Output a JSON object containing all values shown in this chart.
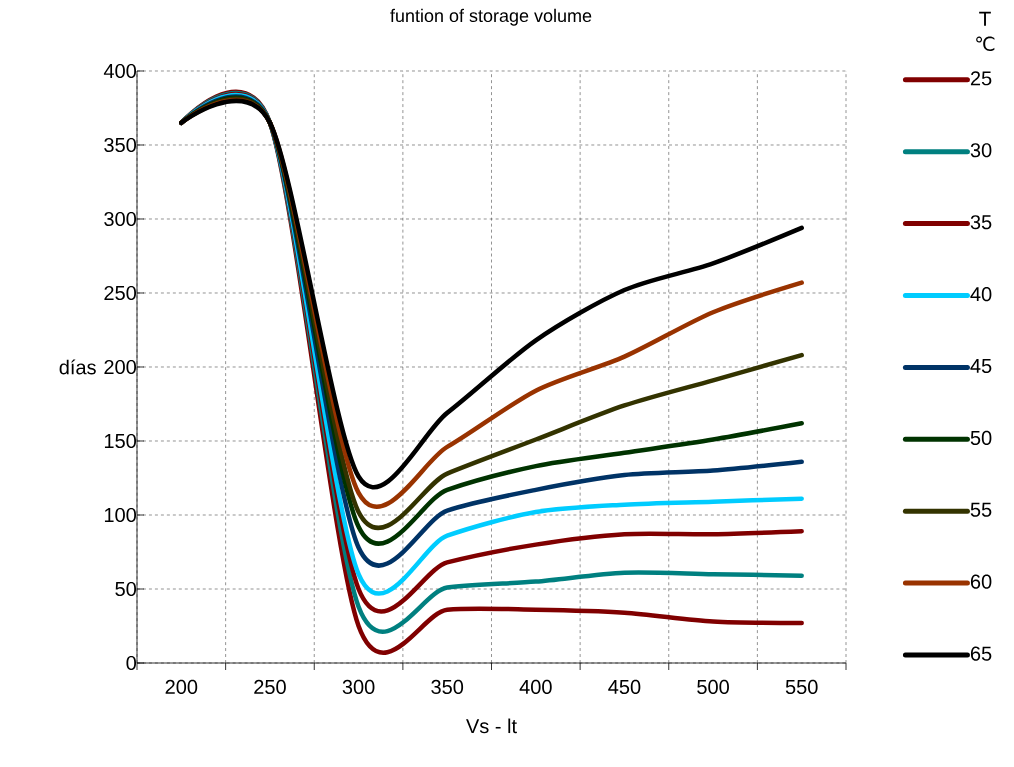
{
  "chart_data": {
    "type": "line",
    "title": "funtion of storage volume",
    "xlabel": "Vs - lt",
    "ylabel": "días",
    "legend_title": "T ℃",
    "x": [
      200,
      250,
      300,
      350,
      400,
      450,
      500,
      550
    ],
    "xlim": [
      175,
      575
    ],
    "xticks": [
      200,
      250,
      300,
      350,
      400,
      450,
      500,
      550
    ],
    "ylim": [
      0,
      400
    ],
    "yticks": [
      0,
      50,
      100,
      150,
      200,
      250,
      300,
      350,
      400
    ],
    "grid": true,
    "legend": "right",
    "series": [
      {
        "name": "25",
        "color": "#800000",
        "values": [
          365,
          365,
          25,
          36,
          36,
          34,
          28,
          27
        ]
      },
      {
        "name": "30",
        "color": "#008080",
        "values": [
          365,
          365,
          38,
          51,
          55,
          61,
          60,
          59
        ]
      },
      {
        "name": "35",
        "color": "#800000",
        "values": [
          365,
          365,
          50,
          68,
          80,
          87,
          87,
          89
        ]
      },
      {
        "name": "40",
        "color": "#00ccff",
        "values": [
          365,
          365,
          60,
          86,
          102,
          107,
          109,
          111
        ]
      },
      {
        "name": "45",
        "color": "#003366",
        "values": [
          365,
          365,
          78,
          103,
          117,
          127,
          130,
          136
        ]
      },
      {
        "name": "50",
        "color": "#003300",
        "values": [
          365,
          365,
          92,
          117,
          133,
          142,
          151,
          162
        ]
      },
      {
        "name": "55",
        "color": "#333300",
        "values": [
          365,
          365,
          102,
          128,
          151,
          174,
          191,
          208
        ]
      },
      {
        "name": "60",
        "color": "#993300",
        "values": [
          365,
          365,
          115,
          146,
          184,
          207,
          237,
          257
        ]
      },
      {
        "name": "65",
        "color": "#000000",
        "values": [
          365,
          365,
          126,
          169,
          218,
          252,
          270,
          294
        ]
      }
    ]
  }
}
